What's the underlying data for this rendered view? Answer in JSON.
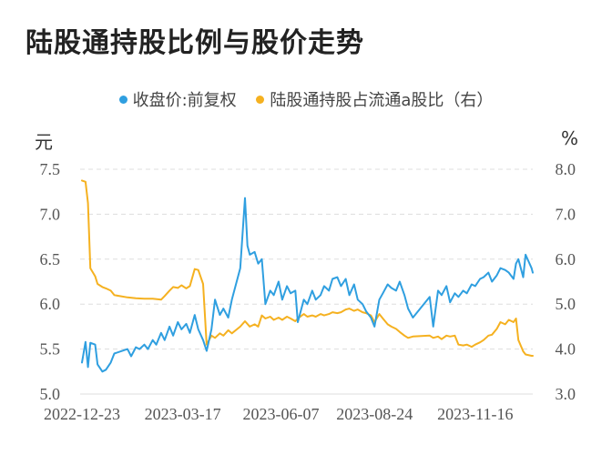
{
  "title": "陆股通持股比例与股价走势",
  "chart_data": {
    "type": "line",
    "left_unit": "元",
    "right_unit": "%",
    "y_left": {
      "min": 5.0,
      "max": 7.5,
      "ticks": [
        "5.0",
        "5.5",
        "6.0",
        "6.5",
        "7.0",
        "7.5"
      ]
    },
    "y_right": {
      "min": 3.0,
      "max": 8.0,
      "ticks": [
        "3.0",
        "4.0",
        "5.0",
        "6.0",
        "7.0",
        "8.0"
      ]
    },
    "x_ticks": [
      "2022-12-23",
      "2023-03-17",
      "2023-06-07",
      "2023-08-24",
      "2023-11-16"
    ],
    "x_range": [
      "2022-12-23",
      "2024-01-03"
    ],
    "grid": "horizontal dashed",
    "legend_position": "top",
    "series": [
      {
        "name": "收盘价:前复权",
        "axis": "left",
        "color": "#2f9fe0",
        "points": [
          [
            "2022-12-23",
            5.35
          ],
          [
            "2022-12-26",
            5.58
          ],
          [
            "2022-12-28",
            5.3
          ],
          [
            "2022-12-30",
            5.57
          ],
          [
            "2023-01-03",
            5.55
          ],
          [
            "2023-01-05",
            5.33
          ],
          [
            "2023-01-09",
            5.25
          ],
          [
            "2023-01-12",
            5.27
          ],
          [
            "2023-01-16",
            5.35
          ],
          [
            "2023-01-19",
            5.45
          ],
          [
            "2023-01-30",
            5.5
          ],
          [
            "2023-02-02",
            5.42
          ],
          [
            "2023-02-06",
            5.52
          ],
          [
            "2023-02-09",
            5.5
          ],
          [
            "2023-02-13",
            5.55
          ],
          [
            "2023-02-16",
            5.5
          ],
          [
            "2023-02-20",
            5.6
          ],
          [
            "2023-02-23",
            5.55
          ],
          [
            "2023-02-27",
            5.68
          ],
          [
            "2023-03-02",
            5.6
          ],
          [
            "2023-03-06",
            5.75
          ],
          [
            "2023-03-09",
            5.65
          ],
          [
            "2023-03-13",
            5.8
          ],
          [
            "2023-03-16",
            5.72
          ],
          [
            "2023-03-20",
            5.78
          ],
          [
            "2023-03-23",
            5.68
          ],
          [
            "2023-03-27",
            5.88
          ],
          [
            "2023-03-30",
            5.72
          ],
          [
            "2023-04-03",
            5.6
          ],
          [
            "2023-04-06",
            5.48
          ],
          [
            "2023-04-10",
            5.72
          ],
          [
            "2023-04-13",
            6.05
          ],
          [
            "2023-04-17",
            5.88
          ],
          [
            "2023-04-20",
            5.95
          ],
          [
            "2023-04-24",
            5.85
          ],
          [
            "2023-04-27",
            6.05
          ],
          [
            "2023-05-04",
            6.4
          ],
          [
            "2023-05-08",
            7.18
          ],
          [
            "2023-05-10",
            6.65
          ],
          [
            "2023-05-12",
            6.55
          ],
          [
            "2023-05-16",
            6.58
          ],
          [
            "2023-05-19",
            6.45
          ],
          [
            "2023-05-22",
            6.5
          ],
          [
            "2023-05-25",
            6.0
          ],
          [
            "2023-05-29",
            6.15
          ],
          [
            "2023-06-01",
            6.1
          ],
          [
            "2023-06-05",
            6.25
          ],
          [
            "2023-06-08",
            6.05
          ],
          [
            "2023-06-12",
            6.2
          ],
          [
            "2023-06-15",
            6.12
          ],
          [
            "2023-06-19",
            6.15
          ],
          [
            "2023-06-21",
            5.8
          ],
          [
            "2023-06-26",
            6.05
          ],
          [
            "2023-06-29",
            6.0
          ],
          [
            "2023-07-03",
            6.15
          ],
          [
            "2023-07-06",
            6.05
          ],
          [
            "2023-07-10",
            6.1
          ],
          [
            "2023-07-13",
            6.2
          ],
          [
            "2023-07-17",
            6.15
          ],
          [
            "2023-07-20",
            6.28
          ],
          [
            "2023-07-24",
            6.3
          ],
          [
            "2023-07-27",
            6.2
          ],
          [
            "2023-07-31",
            6.28
          ],
          [
            "2023-08-03",
            6.1
          ],
          [
            "2023-08-07",
            6.22
          ],
          [
            "2023-08-10",
            6.05
          ],
          [
            "2023-08-14",
            6.0
          ],
          [
            "2023-08-17",
            5.92
          ],
          [
            "2023-08-21",
            5.85
          ],
          [
            "2023-08-24",
            5.75
          ],
          [
            "2023-08-28",
            6.05
          ],
          [
            "2023-08-31",
            6.12
          ],
          [
            "2023-09-04",
            6.22
          ],
          [
            "2023-09-07",
            6.18
          ],
          [
            "2023-09-11",
            6.15
          ],
          [
            "2023-09-14",
            6.25
          ],
          [
            "2023-09-18",
            6.1
          ],
          [
            "2023-09-21",
            5.95
          ],
          [
            "2023-09-25",
            5.85
          ],
          [
            "2023-10-09",
            6.08
          ],
          [
            "2023-10-12",
            5.75
          ],
          [
            "2023-10-16",
            6.15
          ],
          [
            "2023-10-19",
            6.1
          ],
          [
            "2023-10-23",
            6.2
          ],
          [
            "2023-10-26",
            6.02
          ],
          [
            "2023-10-30",
            6.12
          ],
          [
            "2023-11-02",
            6.08
          ],
          [
            "2023-11-06",
            6.15
          ],
          [
            "2023-11-09",
            6.12
          ],
          [
            "2023-11-13",
            6.22
          ],
          [
            "2023-11-16",
            6.2
          ],
          [
            "2023-11-20",
            6.28
          ],
          [
            "2023-11-23",
            6.3
          ],
          [
            "2023-11-27",
            6.35
          ],
          [
            "2023-11-30",
            6.25
          ],
          [
            "2023-12-04",
            6.32
          ],
          [
            "2023-12-07",
            6.4
          ],
          [
            "2023-12-11",
            6.38
          ],
          [
            "2023-12-14",
            6.35
          ],
          [
            "2023-12-18",
            6.28
          ],
          [
            "2023-12-20",
            6.45
          ],
          [
            "2023-12-22",
            6.5
          ],
          [
            "2023-12-26",
            6.3
          ],
          [
            "2023-12-28",
            6.55
          ],
          [
            "2024-01-02",
            6.4
          ],
          [
            "2024-01-03",
            6.35
          ]
        ]
      },
      {
        "name": "陆股通持股占流通a股比（右）",
        "axis": "right",
        "color": "#f5b120",
        "points": [
          [
            "2022-12-23",
            7.75
          ],
          [
            "2022-12-26",
            7.72
          ],
          [
            "2022-12-28",
            7.25
          ],
          [
            "2022-12-30",
            5.8
          ],
          [
            "2023-01-03",
            5.62
          ],
          [
            "2023-01-05",
            5.45
          ],
          [
            "2023-01-09",
            5.38
          ],
          [
            "2023-01-12",
            5.35
          ],
          [
            "2023-01-16",
            5.3
          ],
          [
            "2023-01-19",
            5.2
          ],
          [
            "2023-01-30",
            5.15
          ],
          [
            "2023-02-06",
            5.13
          ],
          [
            "2023-02-13",
            5.12
          ],
          [
            "2023-02-20",
            5.12
          ],
          [
            "2023-02-27",
            5.1
          ],
          [
            "2023-03-02",
            5.18
          ],
          [
            "2023-03-06",
            5.3
          ],
          [
            "2023-03-09",
            5.38
          ],
          [
            "2023-03-13",
            5.36
          ],
          [
            "2023-03-16",
            5.42
          ],
          [
            "2023-03-20",
            5.35
          ],
          [
            "2023-03-23",
            5.4
          ],
          [
            "2023-03-27",
            5.78
          ],
          [
            "2023-03-30",
            5.76
          ],
          [
            "2023-04-03",
            5.45
          ],
          [
            "2023-04-06",
            4.1
          ],
          [
            "2023-04-10",
            4.3
          ],
          [
            "2023-04-13",
            4.25
          ],
          [
            "2023-04-17",
            4.35
          ],
          [
            "2023-04-20",
            4.3
          ],
          [
            "2023-04-24",
            4.42
          ],
          [
            "2023-04-27",
            4.35
          ],
          [
            "2023-05-04",
            4.5
          ],
          [
            "2023-05-08",
            4.62
          ],
          [
            "2023-05-12",
            4.5
          ],
          [
            "2023-05-16",
            4.55
          ],
          [
            "2023-05-19",
            4.5
          ],
          [
            "2023-05-22",
            4.75
          ],
          [
            "2023-05-25",
            4.68
          ],
          [
            "2023-05-29",
            4.72
          ],
          [
            "2023-06-01",
            4.65
          ],
          [
            "2023-06-05",
            4.7
          ],
          [
            "2023-06-08",
            4.65
          ],
          [
            "2023-06-12",
            4.72
          ],
          [
            "2023-06-15",
            4.68
          ],
          [
            "2023-06-19",
            4.62
          ],
          [
            "2023-06-21",
            4.68
          ],
          [
            "2023-06-26",
            4.78
          ],
          [
            "2023-06-29",
            4.72
          ],
          [
            "2023-07-03",
            4.75
          ],
          [
            "2023-07-06",
            4.72
          ],
          [
            "2023-07-10",
            4.78
          ],
          [
            "2023-07-13",
            4.75
          ],
          [
            "2023-07-17",
            4.78
          ],
          [
            "2023-07-20",
            4.82
          ],
          [
            "2023-07-24",
            4.8
          ],
          [
            "2023-07-27",
            4.82
          ],
          [
            "2023-07-31",
            4.88
          ],
          [
            "2023-08-03",
            4.9
          ],
          [
            "2023-08-07",
            4.85
          ],
          [
            "2023-08-10",
            4.88
          ],
          [
            "2023-08-14",
            4.82
          ],
          [
            "2023-08-17",
            4.8
          ],
          [
            "2023-08-21",
            4.75
          ],
          [
            "2023-08-24",
            4.6
          ],
          [
            "2023-08-28",
            4.78
          ],
          [
            "2023-08-31",
            4.68
          ],
          [
            "2023-09-04",
            4.55
          ],
          [
            "2023-09-07",
            4.5
          ],
          [
            "2023-09-11",
            4.45
          ],
          [
            "2023-09-14",
            4.38
          ],
          [
            "2023-09-18",
            4.3
          ],
          [
            "2023-09-21",
            4.25
          ],
          [
            "2023-09-25",
            4.28
          ],
          [
            "2023-10-09",
            4.3
          ],
          [
            "2023-10-12",
            4.25
          ],
          [
            "2023-10-16",
            4.28
          ],
          [
            "2023-10-19",
            4.22
          ],
          [
            "2023-10-23",
            4.3
          ],
          [
            "2023-10-26",
            4.28
          ],
          [
            "2023-10-30",
            4.3
          ],
          [
            "2023-11-02",
            4.1
          ],
          [
            "2023-11-06",
            4.08
          ],
          [
            "2023-11-09",
            4.1
          ],
          [
            "2023-11-13",
            4.05
          ],
          [
            "2023-11-16",
            4.1
          ],
          [
            "2023-11-20",
            4.15
          ],
          [
            "2023-11-23",
            4.2
          ],
          [
            "2023-11-27",
            4.3
          ],
          [
            "2023-11-30",
            4.32
          ],
          [
            "2023-12-04",
            4.45
          ],
          [
            "2023-12-07",
            4.6
          ],
          [
            "2023-12-11",
            4.55
          ],
          [
            "2023-12-14",
            4.65
          ],
          [
            "2023-12-18",
            4.6
          ],
          [
            "2023-12-20",
            4.68
          ],
          [
            "2023-12-22",
            4.2
          ],
          [
            "2023-12-26",
            3.95
          ],
          [
            "2023-12-28",
            3.88
          ],
          [
            "2024-01-02",
            3.85
          ],
          [
            "2024-01-03",
            3.85
          ]
        ]
      }
    ]
  }
}
